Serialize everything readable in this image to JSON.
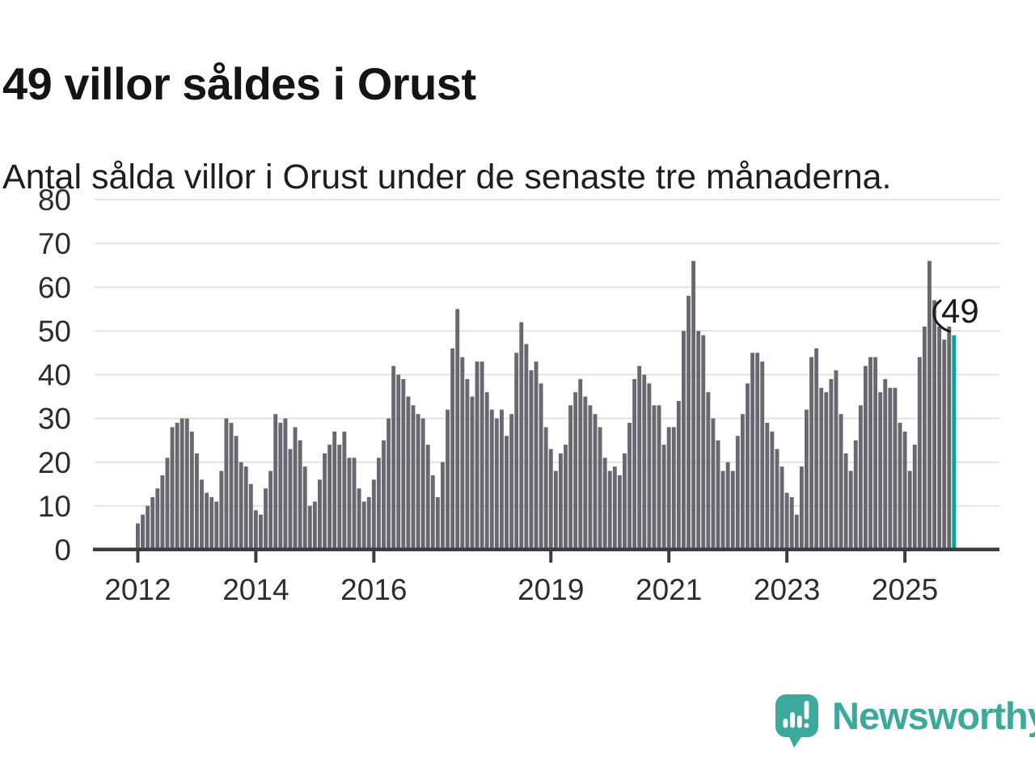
{
  "header": {
    "title": "49 villor såldes i Orust",
    "subtitle": "Antal sålda villor i Orust under de senaste tre månaderna."
  },
  "chart_data": {
    "type": "bar",
    "title": "49 villor såldes i Orust",
    "subtitle": "Antal sålda villor i Orust under de senaste tre månaderna.",
    "xlabel": "",
    "ylabel": "",
    "ylim": [
      0,
      80
    ],
    "yticks": [
      0,
      10,
      20,
      30,
      40,
      50,
      60,
      70,
      80
    ],
    "grid": "horizontal",
    "legend": "none",
    "bar_color": "#686870",
    "highlight_color": "#00a59c",
    "axis_color": "#3b3b43",
    "gridline_color": "#e2e2e2",
    "tick_label_color": "#2d2d2d",
    "annotation": {
      "label": "49",
      "value": 49,
      "applies_to": "last-bar"
    },
    "series_start_year": "2012",
    "xticks": [
      {
        "label": "2012",
        "month_index": 0
      },
      {
        "label": "2014",
        "month_index": 24
      },
      {
        "label": "2016",
        "month_index": 48
      },
      {
        "label": "2019",
        "month_index": 84
      },
      {
        "label": "2021",
        "month_index": 108
      },
      {
        "label": "2023",
        "month_index": 132
      },
      {
        "label": "2025",
        "month_index": 156
      }
    ],
    "values": [
      6,
      8,
      10,
      12,
      14,
      17,
      21,
      28,
      29,
      30,
      30,
      27,
      22,
      16,
      13,
      12,
      11,
      18,
      30,
      29,
      26,
      20,
      19,
      15,
      9,
      8,
      14,
      18,
      31,
      29,
      30,
      23,
      28,
      25,
      19,
      10,
      11,
      16,
      22,
      24,
      27,
      24,
      27,
      21,
      21,
      14,
      11,
      12,
      16,
      21,
      25,
      30,
      42,
      40,
      39,
      35,
      33,
      31,
      30,
      24,
      17,
      12,
      20,
      32,
      46,
      55,
      44,
      39,
      35,
      43,
      43,
      36,
      32,
      30,
      32,
      26,
      31,
      45,
      52,
      47,
      41,
      43,
      38,
      28,
      23,
      18,
      22,
      24,
      33,
      36,
      39,
      35,
      33,
      31,
      28,
      21,
      18,
      19,
      17,
      22,
      29,
      39,
      42,
      40,
      38,
      33,
      33,
      24,
      28,
      28,
      34,
      50,
      58,
      66,
      50,
      49,
      36,
      30,
      25,
      18,
      20,
      18,
      26,
      31,
      38,
      45,
      45,
      43,
      29,
      27,
      23,
      19,
      13,
      12,
      8,
      19,
      32,
      44,
      46,
      37,
      36,
      39,
      41,
      31,
      22,
      18,
      25,
      33,
      42,
      44,
      44,
      36,
      39,
      37,
      37,
      29,
      27,
      18,
      24,
      44,
      51,
      66,
      57,
      51,
      48,
      51,
      49
    ]
  },
  "footer": {
    "brand": "Newsworthy",
    "brand_color": "#3da99c",
    "logo_icon": "newsworthy-speech-bubble-chart-icon"
  }
}
